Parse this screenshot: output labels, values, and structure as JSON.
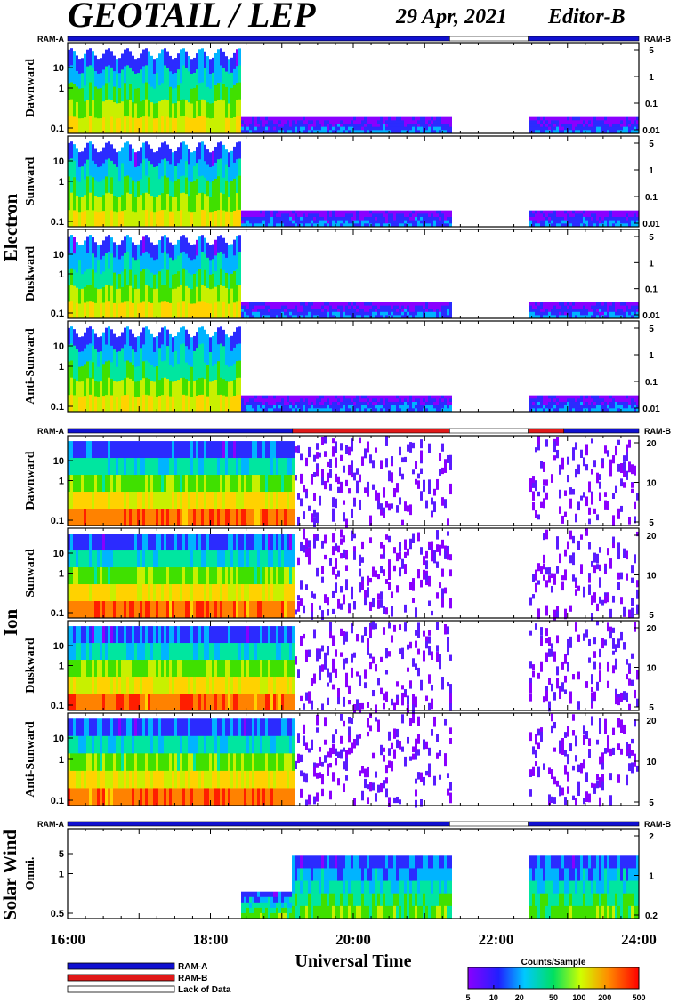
{
  "header": {
    "title": "GEOTAIL / LEP",
    "date": "29 Apr, 2021",
    "editor": "Editor-B"
  },
  "chart_data": {
    "type": "heatmap",
    "xlabel": "Universal Time",
    "x_ticks": [
      "16:00",
      "18:00",
      "20:00",
      "22:00",
      "24:00"
    ],
    "x_range_hours": [
      16,
      24
    ],
    "ram_labels": {
      "left": "RAM-A",
      "right": "RAM-B"
    },
    "ram_bars": {
      "electron": [
        {
          "from": 16.0,
          "to": 21.35,
          "mode": "RAM-A"
        },
        {
          "from": 21.35,
          "to": 22.45,
          "mode": "Lack of Data"
        },
        {
          "from": 22.45,
          "to": 24.0,
          "mode": "RAM-A"
        }
      ],
      "ion": [
        {
          "from": 16.0,
          "to": 19.15,
          "mode": "RAM-A"
        },
        {
          "from": 19.15,
          "to": 21.35,
          "mode": "RAM-B"
        },
        {
          "from": 21.35,
          "to": 22.45,
          "mode": "Lack of Data"
        },
        {
          "from": 22.45,
          "to": 22.95,
          "mode": "RAM-B"
        },
        {
          "from": 22.95,
          "to": 24.0,
          "mode": "RAM-A"
        }
      ],
      "solar_wind": [
        {
          "from": 16.0,
          "to": 21.35,
          "mode": "RAM-A"
        },
        {
          "from": 21.35,
          "to": 22.45,
          "mode": "Lack of Data"
        },
        {
          "from": 22.45,
          "to": 24.0,
          "mode": "RAM-A"
        }
      ]
    },
    "data_gap_hours": [
      21.35,
      22.45
    ],
    "groups": [
      {
        "name": "Electron",
        "left_ticks": [
          "10",
          "1",
          "0.1"
        ],
        "right_ticks": [
          "5",
          "1",
          "0.1",
          "0.01"
        ],
        "panels": [
          "Dawnward",
          "Sunward",
          "Duskward",
          "Anti-Sunward"
        ]
      },
      {
        "name": "Ion",
        "left_ticks": [
          "10",
          "1",
          "0.1"
        ],
        "right_ticks": [
          "20",
          "10",
          "5"
        ],
        "panels": [
          "Dawnward",
          "Sunward",
          "Duskward",
          "Anti-Sunward"
        ]
      },
      {
        "name": "Solar Wind",
        "left_ticks": [
          "5",
          "1",
          "0.5"
        ],
        "right_ticks": [
          "2",
          "1",
          "0.2"
        ],
        "panels": [
          "Omni."
        ]
      }
    ],
    "colorbar": {
      "title": "Counts/Sample",
      "ticks": [
        "5",
        "10",
        "20",
        "50",
        "100",
        "200",
        "500"
      ]
    },
    "legend": [
      {
        "label": "RAM-A",
        "color": "#1010d0"
      },
      {
        "label": "RAM-B",
        "color": "#e01818"
      },
      {
        "label": "Lack of Data",
        "color": "#ffffff"
      }
    ]
  }
}
